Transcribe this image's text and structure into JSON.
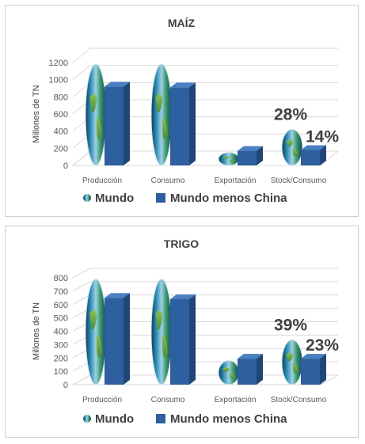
{
  "chart_data": [
    {
      "type": "bar",
      "title": "MAÍZ",
      "ylabel": "Millones de TN",
      "ylim": [
        0,
        1200
      ],
      "yticks": [
        0,
        200,
        400,
        600,
        800,
        1000,
        1200
      ],
      "categories": [
        "Producción",
        "Consumo",
        "Exportación",
        "Stock/Consumo"
      ],
      "series": [
        {
          "name": "Mundo",
          "values": [
            1180,
            1180,
            150,
            420
          ],
          "fill": "globe-image"
        },
        {
          "name": "Mundo menos China",
          "values": [
            920,
            910,
            170,
            180
          ],
          "color": "#2e5f9e"
        }
      ],
      "annotations": [
        {
          "text": "28%",
          "category": "Stock/Consumo",
          "series": "Mundo"
        },
        {
          "text": "14%",
          "category": "Stock/Consumo",
          "series": "Mundo menos China"
        }
      ],
      "legend": "bottom",
      "grid": true
    },
    {
      "type": "bar",
      "title": "TRIGO",
      "ylabel": "Millones de TN",
      "ylim": [
        0,
        800
      ],
      "yticks": [
        0,
        100,
        200,
        300,
        400,
        500,
        600,
        700,
        800
      ],
      "categories": [
        "Producción",
        "Consumo",
        "Exportación",
        "Stock/Consumo"
      ],
      "series": [
        {
          "name": "Mundo",
          "values": [
            790,
            790,
            180,
            335
          ],
          "fill": "globe-image"
        },
        {
          "name": "Mundo menos China",
          "values": [
            650,
            640,
            195,
            195
          ],
          "color": "#2e5f9e"
        }
      ],
      "annotations": [
        {
          "text": "39%",
          "category": "Stock/Consumo",
          "series": "Mundo"
        },
        {
          "text": "23%",
          "category": "Stock/Consumo",
          "series": "Mundo menos China"
        }
      ],
      "legend": "bottom",
      "grid": true
    }
  ]
}
